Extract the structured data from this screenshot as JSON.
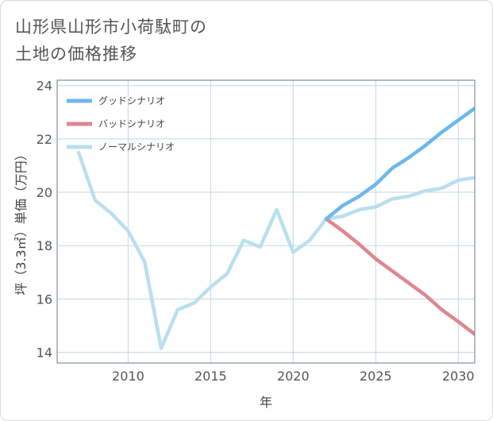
{
  "title": {
    "line1": "山形県山形市小荷駄町の",
    "line2": "土地の価格推移"
  },
  "colors": {
    "good": "#6cb8ec",
    "bad": "#de8691",
    "normal": "#b9dfee",
    "grid": "#c8d4e3",
    "frame": "#6a7b8f"
  },
  "chart_data": {
    "type": "line",
    "xlabel": "年",
    "ylabel": "坪（3.3㎡）単価（万円）",
    "xlim": [
      2005.7,
      2031
    ],
    "ylim": [
      13.6,
      24.2
    ],
    "xticks": [
      2010,
      2015,
      2020,
      2025,
      2030
    ],
    "yticks": [
      14,
      16,
      18,
      20,
      22,
      24
    ],
    "xtick_labels": [
      "2010",
      "2015",
      "2020",
      "2025",
      "2030"
    ],
    "ytick_labels": [
      "14",
      "16",
      "18",
      "20",
      "22",
      "24"
    ],
    "grid": true,
    "legend_position": "top-left",
    "series": [
      {
        "name": "グッドシナリオ",
        "key": "good",
        "x": [
          2022,
          2023,
          2024,
          2025,
          2026,
          2027,
          2028,
          2029,
          2030,
          2031
        ],
        "y": [
          19.0,
          19.5,
          19.85,
          20.3,
          20.9,
          21.3,
          21.75,
          22.25,
          22.7,
          23.15
        ]
      },
      {
        "name": "バッドシナリオ",
        "key": "bad",
        "x": [
          2022,
          2023,
          2024,
          2025,
          2026,
          2027,
          2028,
          2029,
          2030,
          2031
        ],
        "y": [
          19.0,
          18.55,
          18.05,
          17.5,
          17.05,
          16.6,
          16.15,
          15.6,
          15.15,
          14.68
        ]
      },
      {
        "name": "ノーマルシナリオ",
        "key": "normal",
        "x": [
          2007,
          2008,
          2009,
          2010,
          2011,
          2012,
          2013,
          2014,
          2015,
          2016,
          2017,
          2018,
          2019,
          2020,
          2021,
          2022,
          2023,
          2024,
          2025,
          2026,
          2027,
          2028,
          2029,
          2030,
          2031
        ],
        "y": [
          21.5,
          19.7,
          19.2,
          18.55,
          17.4,
          14.15,
          15.6,
          15.85,
          16.45,
          16.95,
          18.2,
          17.95,
          19.35,
          17.75,
          18.2,
          19.0,
          19.1,
          19.35,
          19.45,
          19.75,
          19.85,
          20.05,
          20.15,
          20.45,
          20.55
        ]
      }
    ]
  }
}
